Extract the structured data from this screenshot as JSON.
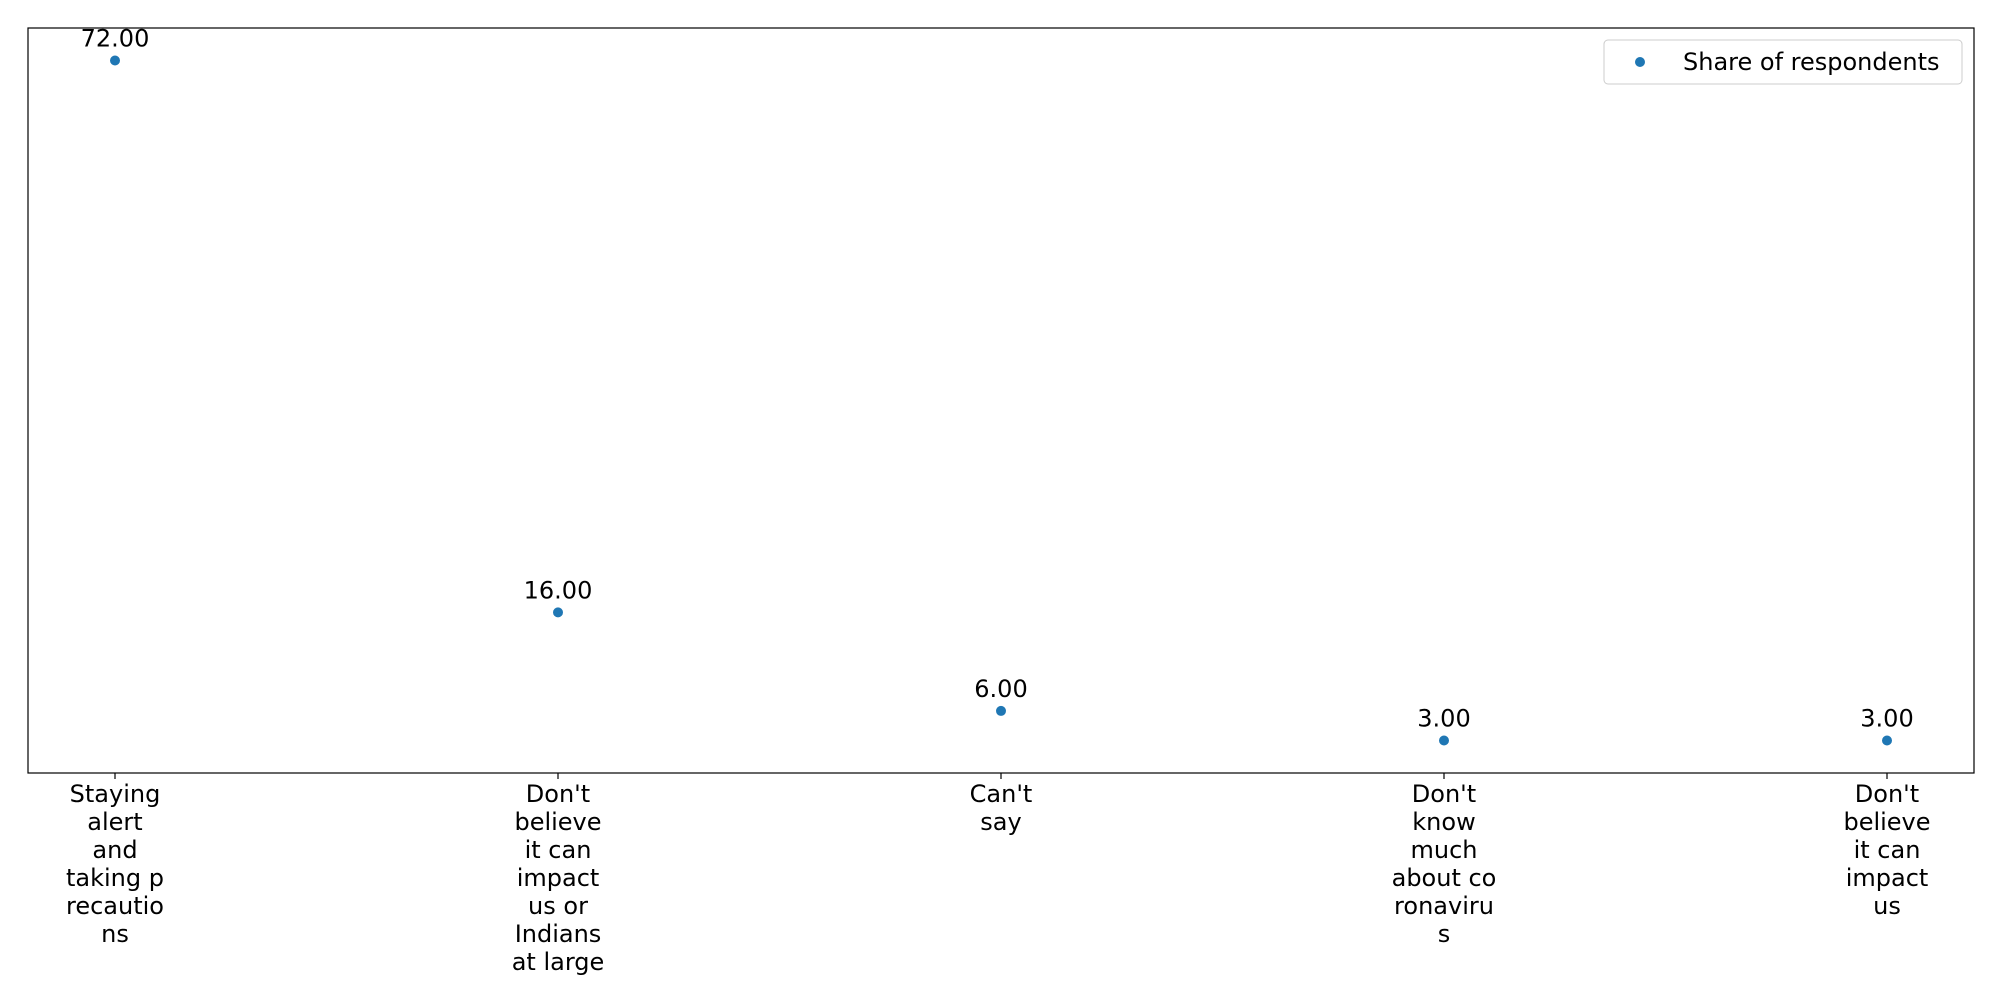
{
  "chart_data": {
    "type": "scatter",
    "categories": [
      [
        "Staying",
        "alert",
        "and",
        "taking p",
        "recautio",
        "ns"
      ],
      [
        "Don't",
        "believe",
        "it can",
        "impact",
        "us or",
        "Indians",
        "at large"
      ],
      [
        "Can't",
        "say"
      ],
      [
        "Don't",
        "know",
        "much",
        "about co",
        "ronaviru",
        "s"
      ],
      [
        "Don't",
        "believe",
        "it can",
        "impact",
        "us"
      ]
    ],
    "series": [
      {
        "name": "Share of respondents",
        "values": [
          72,
          16,
          6,
          3,
          3
        ]
      }
    ],
    "value_labels": [
      "72.00",
      "16.00",
      "6.00",
      "3.00",
      "3.00"
    ],
    "ylim": [
      -0.3,
      75.3
    ],
    "grid": false,
    "legend_position": "top-right",
    "colors": {
      "series": "#1f77b4"
    }
  }
}
